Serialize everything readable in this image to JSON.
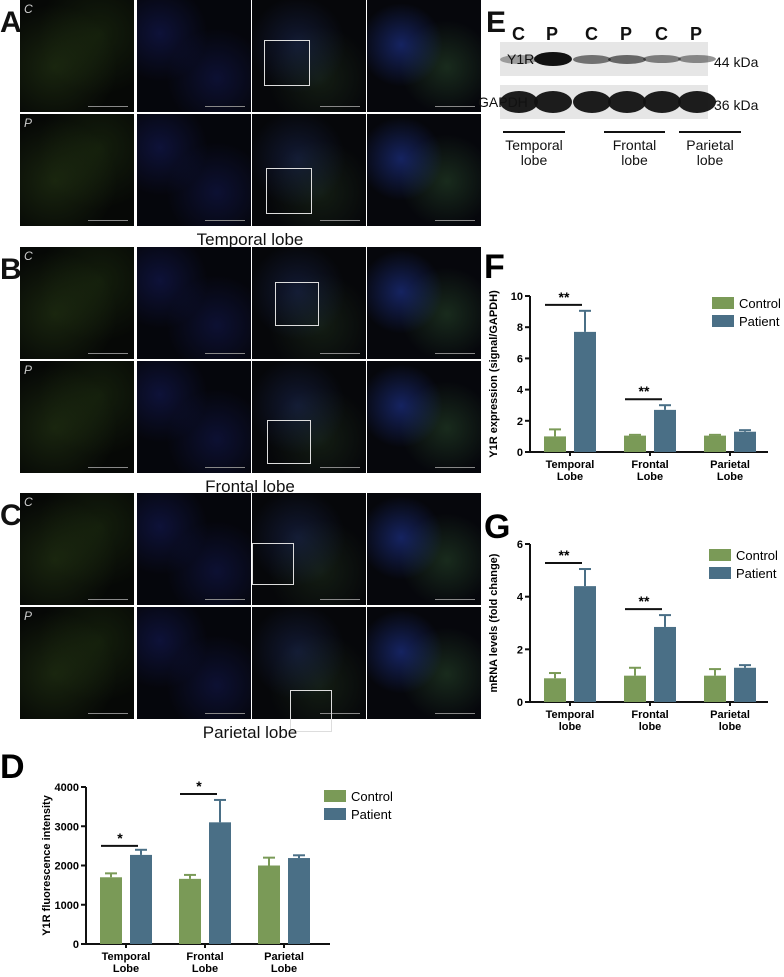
{
  "panels": {
    "A": {
      "letter": "A",
      "region": "Temporal lobe",
      "row_labels": [
        "C",
        "P"
      ]
    },
    "B": {
      "letter": "B",
      "region": "Frontal lobe",
      "row_labels": [
        "C",
        "P"
      ]
    },
    "C": {
      "letter": "C",
      "region": "Parietal lobe",
      "row_labels": [
        "C",
        "P"
      ]
    },
    "E": {
      "letter": "E",
      "lanes": [
        "C",
        "P",
        "C",
        "P",
        "C",
        "P"
      ],
      "rows": [
        {
          "label": "Y1R",
          "size": "44 kDa"
        },
        {
          "label": "GAPDH",
          "size": "36 kDa"
        }
      ],
      "groups": [
        [
          "Temporal",
          "lobe"
        ],
        [
          "Frontal",
          "lobe"
        ],
        [
          "Parietal",
          "lobe"
        ]
      ]
    }
  },
  "colors": {
    "control": "#7a9a57",
    "patient": "#4a6f86"
  },
  "chart_data": [
    {
      "id": "D",
      "letter": "D",
      "type": "bar",
      "categories": [
        [
          "Temporal",
          "Lobe"
        ],
        [
          "Frontal",
          "Lobe"
        ],
        [
          "Parietal",
          "Lobe"
        ]
      ],
      "ylabel": "Y1R fluorescence intensity",
      "ylim": [
        0,
        4000
      ],
      "yticks": [
        0,
        1000,
        2000,
        3000,
        4000
      ],
      "legend": "top-right",
      "grid": false,
      "series": [
        {
          "name": "Control",
          "values": [
            1700,
            1660,
            2000
          ],
          "errors": [
            100,
            100,
            200
          ]
        },
        {
          "name": "Patient",
          "values": [
            2270,
            3100,
            2190
          ],
          "errors": [
            130,
            570,
            70
          ]
        }
      ],
      "significance": [
        "*",
        "*",
        ""
      ]
    },
    {
      "id": "F",
      "letter": "F",
      "type": "bar",
      "categories": [
        [
          "Temporal",
          "Lobe"
        ],
        [
          "Frontal",
          "Lobe"
        ],
        [
          "Parietal",
          "Lobe"
        ]
      ],
      "ylabel": "Y1R expression (signal/GAPDH)",
      "ylim": [
        0,
        10
      ],
      "yticks": [
        0,
        2,
        4,
        6,
        8,
        10
      ],
      "legend": "top-right",
      "grid": false,
      "series": [
        {
          "name": "Control",
          "values": [
            1.0,
            1.05,
            1.05
          ],
          "errors": [
            0.45,
            0.05,
            0.05
          ]
        },
        {
          "name": "Patient",
          "values": [
            7.7,
            2.7,
            1.3
          ],
          "errors": [
            1.35,
            0.3,
            0.1
          ]
        }
      ],
      "significance": [
        "**",
        "**",
        ""
      ]
    },
    {
      "id": "G",
      "letter": "G",
      "type": "bar",
      "categories": [
        [
          "Temporal",
          "lobe"
        ],
        [
          "Frontal",
          "lobe"
        ],
        [
          "Parietal",
          "lobe"
        ]
      ],
      "ylabel": "mRNA levels (fold change)",
      "ylim": [
        0,
        6
      ],
      "yticks": [
        0,
        2,
        4,
        6
      ],
      "legend": "top-right",
      "grid": false,
      "series": [
        {
          "name": "Control",
          "values": [
            0.9,
            1.0,
            1.0
          ],
          "errors": [
            0.2,
            0.3,
            0.25
          ]
        },
        {
          "name": "Patient",
          "values": [
            4.4,
            2.85,
            1.3
          ],
          "errors": [
            0.65,
            0.45,
            0.1
          ]
        }
      ],
      "significance": [
        "**",
        "**",
        ""
      ]
    }
  ]
}
